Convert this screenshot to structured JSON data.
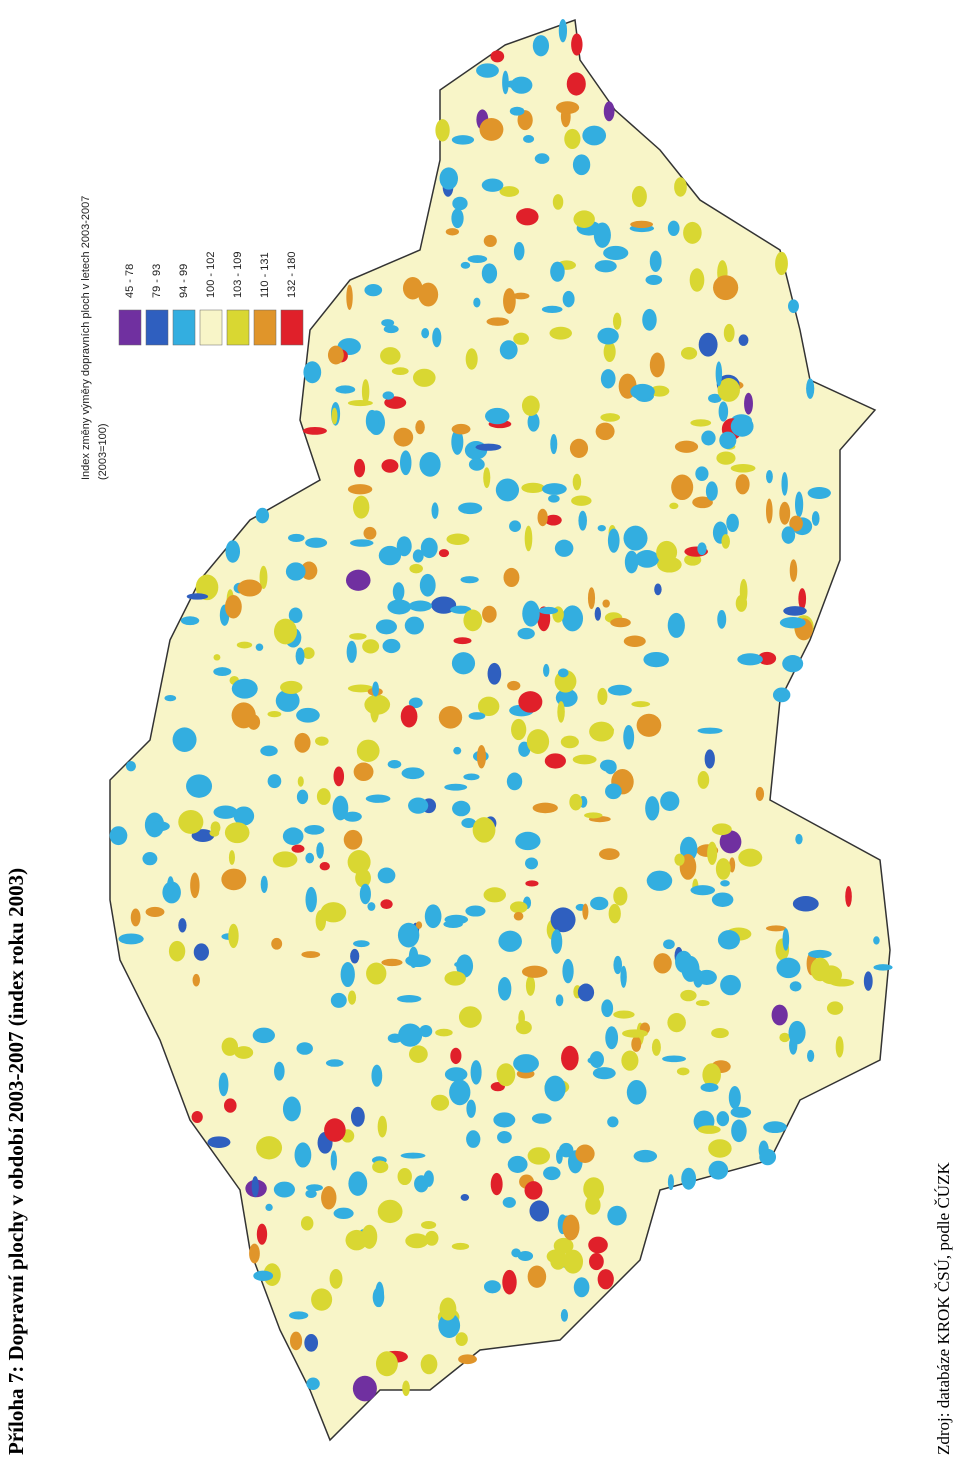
{
  "title": "Příloha 7: Dopravní plochy v období 2003-2007 (index roku 2003)",
  "legend": {
    "title": "Index změny výměry dopravních ploch v letech 2003-2007",
    "subtitle": "(2003=100)",
    "items": [
      {
        "label": "45 - 78",
        "color": "#7030a0"
      },
      {
        "label": "79 - 93",
        "color": "#2f5fbf"
      },
      {
        "label": "94 - 99",
        "color": "#33aee0"
      },
      {
        "label": "100 - 102",
        "color": "#f8f5c8"
      },
      {
        "label": "103 - 109",
        "color": "#d9d732"
      },
      {
        "label": "110 - 131",
        "color": "#e0952a"
      },
      {
        "label": "132 - 180",
        "color": "#e0202a"
      }
    ]
  },
  "source": "Zdroj: databáze KROK ČSÚ, podle ČÚZK"
}
